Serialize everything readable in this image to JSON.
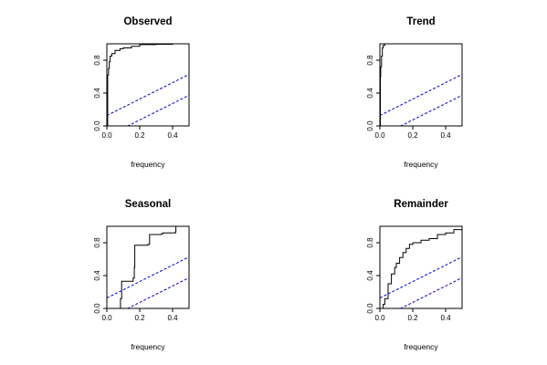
{
  "chart_data": [
    {
      "type": "line",
      "title": "Observed",
      "xlabel": "frequency",
      "ylabel": "",
      "xlim": [
        0,
        0.5
      ],
      "ylim": [
        0,
        1
      ],
      "xticks": [
        "0.0",
        "0.2",
        "0.4"
      ],
      "yticks": [
        "0.0",
        "0.4",
        "0.8"
      ],
      "series": [
        {
          "style": "solid-step",
          "color": "#000000",
          "x": [
            0,
            0.005,
            0.01,
            0.015,
            0.02,
            0.03,
            0.05,
            0.08,
            0.1,
            0.15,
            0.2,
            0.3,
            0.4,
            0.5
          ],
          "y": [
            0,
            0.62,
            0.7,
            0.78,
            0.85,
            0.88,
            0.92,
            0.94,
            0.95,
            0.97,
            0.99,
            0.995,
            1.0,
            1.0
          ]
        },
        {
          "style": "dashed",
          "color": "#0000cc",
          "x": [
            0,
            0.5
          ],
          "y": [
            0.127,
            0.627
          ]
        },
        {
          "style": "dashed",
          "color": "#0000cc",
          "x": [
            0,
            0.5
          ],
          "y": [
            -0.127,
            0.373
          ]
        }
      ]
    },
    {
      "type": "line",
      "title": "Trend",
      "xlabel": "frequency",
      "ylabel": "",
      "xlim": [
        0,
        0.5
      ],
      "ylim": [
        0,
        1
      ],
      "xticks": [
        "0.0",
        "0.2",
        "0.4"
      ],
      "yticks": [
        "0.0",
        "0.4",
        "0.8"
      ],
      "series": [
        {
          "style": "solid-step",
          "color": "#000000",
          "x": [
            0,
            0.003,
            0.005,
            0.01,
            0.015,
            0.02,
            0.03,
            0.05,
            0.5
          ],
          "y": [
            0,
            0.6,
            0.72,
            0.85,
            0.95,
            0.98,
            1.0,
            1.0,
            1.0
          ]
        },
        {
          "style": "dashed",
          "color": "#0000cc",
          "x": [
            0,
            0.5
          ],
          "y": [
            0.127,
            0.627
          ]
        },
        {
          "style": "dashed",
          "color": "#0000cc",
          "x": [
            0,
            0.5
          ],
          "y": [
            -0.127,
            0.373
          ]
        }
      ]
    },
    {
      "type": "line",
      "title": "Seasonal",
      "xlabel": "frequency",
      "ylabel": "",
      "xlim": [
        0,
        0.5
      ],
      "ylim": [
        0,
        1
      ],
      "xticks": [
        "0.0",
        "0.2",
        "0.4"
      ],
      "yticks": [
        "0.0",
        "0.4",
        "0.8"
      ],
      "series": [
        {
          "style": "solid-step",
          "color": "#000000",
          "x": [
            0,
            0.083,
            0.083,
            0.09,
            0.15,
            0.16,
            0.167,
            0.17,
            0.25,
            0.26,
            0.333,
            0.34,
            0.417,
            0.42,
            0.5
          ],
          "y": [
            0,
            0,
            0.12,
            0.33,
            0.33,
            0.37,
            0.5,
            0.77,
            0.78,
            0.9,
            0.91,
            0.92,
            0.93,
            1.0,
            1.0
          ]
        },
        {
          "style": "dashed",
          "color": "#0000cc",
          "x": [
            0,
            0.5
          ],
          "y": [
            0.127,
            0.627
          ]
        },
        {
          "style": "dashed",
          "color": "#0000cc",
          "x": [
            0,
            0.5
          ],
          "y": [
            -0.127,
            0.373
          ]
        }
      ]
    },
    {
      "type": "line",
      "title": "Remainder",
      "xlabel": "frequency",
      "ylabel": "",
      "xlim": [
        0,
        0.5
      ],
      "ylim": [
        0,
        1
      ],
      "xticks": [
        "0.0",
        "0.2",
        "0.4"
      ],
      "yticks": [
        "0.0",
        "0.4",
        "0.8"
      ],
      "series": [
        {
          "style": "solid-step",
          "color": "#000000",
          "x": [
            0,
            0.02,
            0.03,
            0.05,
            0.07,
            0.09,
            0.1,
            0.12,
            0.14,
            0.16,
            0.18,
            0.2,
            0.25,
            0.3,
            0.35,
            0.4,
            0.45,
            0.5
          ],
          "y": [
            0,
            0.05,
            0.12,
            0.3,
            0.42,
            0.5,
            0.55,
            0.62,
            0.68,
            0.73,
            0.78,
            0.8,
            0.83,
            0.85,
            0.9,
            0.92,
            0.96,
            1.0
          ]
        },
        {
          "style": "dashed",
          "color": "#0000cc",
          "x": [
            0,
            0.5
          ],
          "y": [
            0.127,
            0.627
          ]
        },
        {
          "style": "dashed",
          "color": "#0000cc",
          "x": [
            0,
            0.5
          ],
          "y": [
            -0.127,
            0.373
          ]
        }
      ]
    }
  ]
}
